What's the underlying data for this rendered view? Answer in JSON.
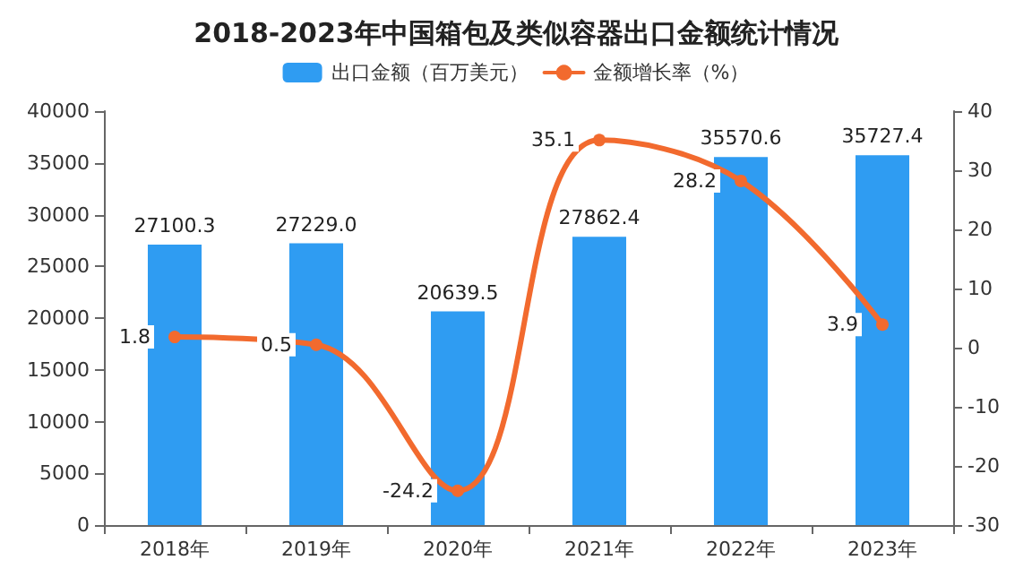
{
  "chart_data": {
    "type": "bar",
    "title": "2018-2023年中国箱包及类似容器出口金额统计情况",
    "categories": [
      "2018年",
      "2019年",
      "2020年",
      "2021年",
      "2022年",
      "2023年"
    ],
    "series": [
      {
        "name": "出口金额（百万美元）",
        "color": "#2f9cf2",
        "values": [
          27100.3,
          27229.0,
          20639.5,
          27862.4,
          35570.6,
          35727.4
        ],
        "value_labels": [
          "27100.3",
          "27229.0",
          "20639.5",
          "27862.4",
          "35570.6",
          "35727.4"
        ]
      },
      {
        "name": "金额增长率（%）",
        "type": "line",
        "axis": "y2",
        "color": "#f26a2e",
        "marker": "circle",
        "values": [
          1.8,
          0.5,
          -24.2,
          35.1,
          28.2,
          3.9
        ],
        "value_labels": [
          "1.8",
          "0.5",
          "-24.2",
          "35.1",
          "28.2",
          "3.9"
        ]
      }
    ],
    "ylim": [
      0,
      40000
    ],
    "yticks": [
      0,
      5000,
      10000,
      15000,
      20000,
      25000,
      30000,
      35000,
      40000
    ],
    "y2lim": [
      -30,
      40
    ],
    "y2ticks": [
      -30,
      -20,
      -10,
      0,
      10,
      20,
      30,
      40
    ],
    "grid": false,
    "legend": "top"
  }
}
